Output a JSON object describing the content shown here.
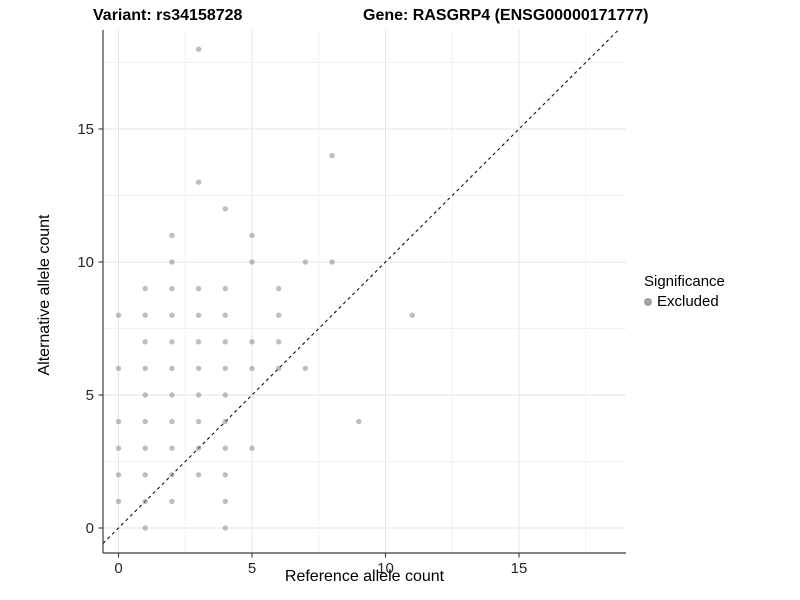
{
  "titles": {
    "variant": "Variant: rs34158728",
    "gene": "Gene: RASGRP4 (ENSG00000171777)"
  },
  "axes": {
    "x_label": "Reference allele count",
    "y_label": "Alternative allele count",
    "x_ticks": [
      0,
      5,
      10,
      15
    ],
    "y_ticks": [
      0,
      5,
      10,
      15
    ]
  },
  "legend": {
    "title": "Significance",
    "items": [
      {
        "label": "Excluded",
        "color": "#a3a3a3",
        "marker": "circle-icon"
      }
    ]
  },
  "colors": {
    "point": "#7d7d7d",
    "point_opacity": 0.5,
    "legend_dot": "#a3a3a3",
    "grid_major": "#e6e6e6",
    "grid_minor": "#f1f1f1",
    "axis": "#3c3c3c",
    "identity_line": "#111111",
    "text": "#000000"
  },
  "chart_data": {
    "type": "scatter",
    "title": "Variant: rs34158728 | Gene: RASGRP4 (ENSG00000171777)",
    "xlabel": "Reference allele count",
    "ylabel": "Alternative allele count",
    "xlim": [
      -0.6,
      19.0
    ],
    "ylim": [
      -0.95,
      18.7
    ],
    "x_breaks": [
      0,
      5,
      10,
      15
    ],
    "y_breaks": [
      0,
      5,
      10,
      15
    ],
    "x_minor_breaks": [
      2.5,
      7.5,
      12.5,
      17.5
    ],
    "y_minor_breaks": [
      2.5,
      7.5,
      12.5,
      17.5
    ],
    "grid": true,
    "legend_position": "right",
    "reference_line": {
      "type": "identity",
      "slope": 1,
      "intercept": 0,
      "style": "dashed"
    },
    "series": [
      {
        "name": "Excluded",
        "points": [
          [
            1,
            0
          ],
          [
            4,
            0
          ],
          [
            0,
            1
          ],
          [
            1,
            1
          ],
          [
            2,
            1
          ],
          [
            4,
            1
          ],
          [
            0,
            2
          ],
          [
            1,
            2
          ],
          [
            2,
            2
          ],
          [
            3,
            2
          ],
          [
            4,
            2
          ],
          [
            0,
            3
          ],
          [
            1,
            3
          ],
          [
            2,
            3
          ],
          [
            3,
            3
          ],
          [
            4,
            3
          ],
          [
            5,
            3
          ],
          [
            0,
            4
          ],
          [
            1,
            4
          ],
          [
            2,
            4
          ],
          [
            3,
            4
          ],
          [
            4,
            4
          ],
          [
            9,
            4
          ],
          [
            1,
            5
          ],
          [
            2,
            5
          ],
          [
            3,
            5
          ],
          [
            4,
            5
          ],
          [
            0,
            6
          ],
          [
            1,
            6
          ],
          [
            2,
            6
          ],
          [
            3,
            6
          ],
          [
            4,
            6
          ],
          [
            5,
            6
          ],
          [
            6,
            6
          ],
          [
            7,
            6
          ],
          [
            1,
            7
          ],
          [
            2,
            7
          ],
          [
            3,
            7
          ],
          [
            4,
            7
          ],
          [
            5,
            7
          ],
          [
            6,
            7
          ],
          [
            0,
            8
          ],
          [
            1,
            8
          ],
          [
            2,
            8
          ],
          [
            3,
            8
          ],
          [
            4,
            8
          ],
          [
            6,
            8
          ],
          [
            11,
            8
          ],
          [
            1,
            9
          ],
          [
            2,
            9
          ],
          [
            3,
            9
          ],
          [
            4,
            9
          ],
          [
            6,
            9
          ],
          [
            2,
            10
          ],
          [
            5,
            10
          ],
          [
            7,
            10
          ],
          [
            8,
            10
          ],
          [
            2,
            11
          ],
          [
            5,
            11
          ],
          [
            4,
            12
          ],
          [
            3,
            13
          ],
          [
            8,
            14
          ],
          [
            3,
            18
          ]
        ]
      }
    ]
  }
}
